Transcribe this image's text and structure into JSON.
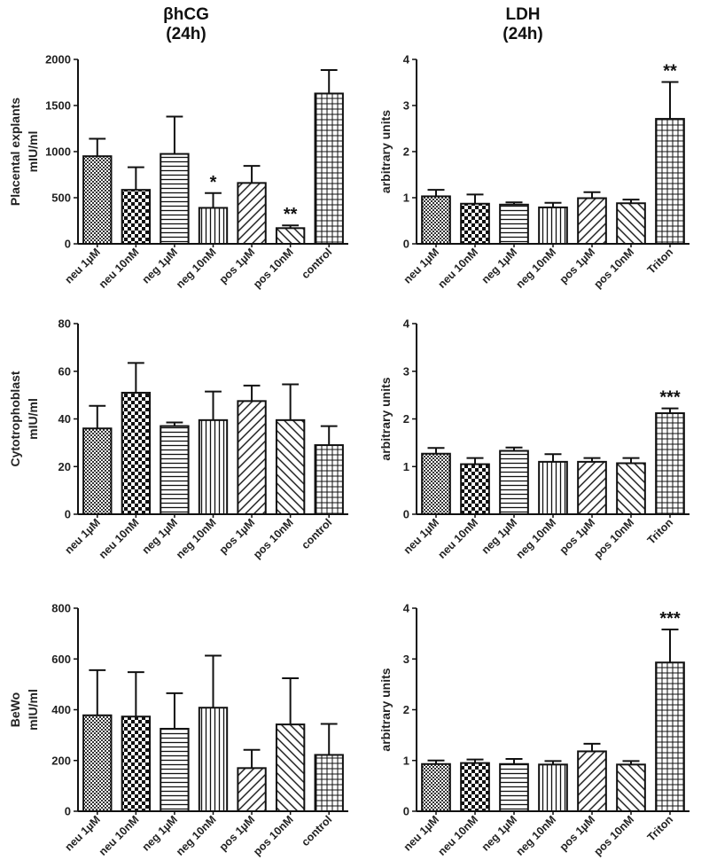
{
  "titles": {
    "left_line1": "βhCG",
    "left_line2": "(24h)",
    "right_line1": "LDH",
    "right_line2": "(24h)"
  },
  "patterns": {
    "neu 1µM": "dots",
    "neu 10nM": "checker",
    "neg 1µM": "hlines",
    "neg 10nM": "vlines",
    "pos 1µM": "diag-up",
    "pos 10nM": "diag-down",
    "control": "grid",
    "Triton": "grid"
  },
  "chart_data": [
    {
      "id": "hcg-explants",
      "type": "bar",
      "ylabel": [
        "Placental explants",
        "mIU/ml"
      ],
      "ylim": [
        0,
        2000
      ],
      "yticks": [
        0,
        500,
        1000,
        1500,
        2000
      ],
      "categories": [
        "neu 1µM",
        "neu 10nM",
        "neg 1µM",
        "neg 10nM",
        "pos 1µM",
        "pos 10nM",
        "control"
      ],
      "values": [
        950,
        585,
        975,
        390,
        660,
        170,
        1630
      ],
      "errors": [
        190,
        245,
        405,
        160,
        185,
        30,
        255
      ],
      "annotations": [
        "",
        "",
        "",
        "*",
        "",
        "**",
        ""
      ]
    },
    {
      "id": "ldh-explants",
      "type": "bar",
      "ylabel": [
        "arbitrary units"
      ],
      "ylim": [
        0,
        4
      ],
      "yticks": [
        0,
        1,
        2,
        3,
        4
      ],
      "categories": [
        "neu 1µM",
        "neu 10nM",
        "neg 1µM",
        "neg 10nM",
        "pos 1µM",
        "pos 10nM",
        "Triton"
      ],
      "values": [
        1.03,
        0.87,
        0.85,
        0.79,
        0.99,
        0.88,
        2.71
      ],
      "errors": [
        0.14,
        0.2,
        0.05,
        0.1,
        0.13,
        0.08,
        0.8
      ],
      "annotations": [
        "",
        "",
        "",
        "",
        "",
        "",
        "**"
      ]
    },
    {
      "id": "hcg-cyto",
      "type": "bar",
      "ylabel": [
        "Cytotrophoblast",
        "mIU/ml"
      ],
      "ylim": [
        0,
        80
      ],
      "yticks": [
        0,
        20,
        40,
        60,
        80
      ],
      "categories": [
        "neu 1µM",
        "neu 10nM",
        "neg 1µM",
        "neg 10nM",
        "pos 1µM",
        "pos 10nM",
        "control"
      ],
      "values": [
        36,
        51,
        37,
        39.5,
        47.5,
        39.5,
        29
      ],
      "errors": [
        9.5,
        12.5,
        1.5,
        12,
        6.5,
        15,
        8
      ],
      "annotations": [
        "",
        "",
        "",
        "",
        "",
        "",
        ""
      ]
    },
    {
      "id": "ldh-cyto",
      "type": "bar",
      "ylabel": [
        "arbitrary units"
      ],
      "ylim": [
        0,
        4
      ],
      "yticks": [
        0,
        1,
        2,
        3,
        4
      ],
      "categories": [
        "neu 1µM",
        "neu 10nM",
        "neg 1µM",
        "neg 10nM",
        "pos 1µM",
        "pos 10nM",
        "Triton"
      ],
      "values": [
        1.27,
        1.05,
        1.33,
        1.1,
        1.1,
        1.07,
        2.12
      ],
      "errors": [
        0.12,
        0.13,
        0.07,
        0.16,
        0.08,
        0.11,
        0.1
      ],
      "annotations": [
        "",
        "",
        "",
        "",
        "",
        "",
        "***"
      ]
    },
    {
      "id": "hcg-bewo",
      "type": "bar",
      "ylabel": [
        "BeWo",
        "mIU/ml"
      ],
      "ylim": [
        0,
        800
      ],
      "yticks": [
        0,
        200,
        400,
        600,
        800
      ],
      "categories": [
        "neu 1µM",
        "neu 10nM",
        "neg 1µM",
        "neg 10nM",
        "pos 1µM",
        "pos 10nM",
        "control"
      ],
      "values": [
        378,
        373,
        325,
        408,
        170,
        342,
        222
      ],
      "errors": [
        178,
        175,
        140,
        205,
        72,
        182,
        122
      ],
      "annotations": [
        "",
        "",
        "",
        "",
        "",
        "",
        ""
      ]
    },
    {
      "id": "ldh-bewo",
      "type": "bar",
      "ylabel": [
        "arbitrary units"
      ],
      "ylim": [
        0,
        4
      ],
      "yticks": [
        0,
        1,
        2,
        3,
        4
      ],
      "categories": [
        "neu 1µM",
        "neu 10nM",
        "neg 1µM",
        "neg 10nM",
        "pos 1µM",
        "pos 10nM",
        "Triton"
      ],
      "values": [
        0.93,
        0.95,
        0.93,
        0.92,
        1.18,
        0.92,
        2.93
      ],
      "errors": [
        0.07,
        0.07,
        0.1,
        0.07,
        0.15,
        0.07,
        0.65
      ],
      "annotations": [
        "",
        "",
        "",
        "",
        "",
        "",
        "***"
      ]
    }
  ]
}
